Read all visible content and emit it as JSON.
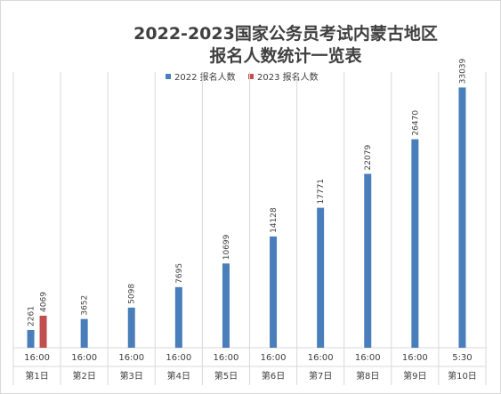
{
  "chart_data": {
    "type": "bar",
    "title_line1": "2022-2023国家公务员考试内蒙古地区",
    "title_line2": "报名人数统计一览表",
    "categories": [
      {
        "time": "16:00",
        "day": "第1日"
      },
      {
        "time": "16:00",
        "day": "第2日"
      },
      {
        "time": "16:00",
        "day": "第3日"
      },
      {
        "time": "16:00",
        "day": "第4日"
      },
      {
        "time": "16:00",
        "day": "第5日"
      },
      {
        "time": "16:00",
        "day": "第6日"
      },
      {
        "time": "16:00",
        "day": "第7日"
      },
      {
        "time": "16:00",
        "day": "第8日"
      },
      {
        "time": "16:00",
        "day": "第9日"
      },
      {
        "time": "5:30",
        "day": "第10日"
      }
    ],
    "series": [
      {
        "name": "2022 报名人数",
        "color": "#4a7ebb",
        "values": [
          2261,
          3652,
          5098,
          7695,
          10699,
          14128,
          17771,
          22079,
          26470,
          33039
        ]
      },
      {
        "name": "2023 报名人数",
        "color": "#c0504d",
        "values": [
          4069,
          null,
          null,
          null,
          null,
          null,
          null,
          null,
          null,
          null
        ]
      }
    ],
    "ylim": [
      0,
      35000
    ],
    "legend_position": "top",
    "grid": "vertical category separators"
  }
}
